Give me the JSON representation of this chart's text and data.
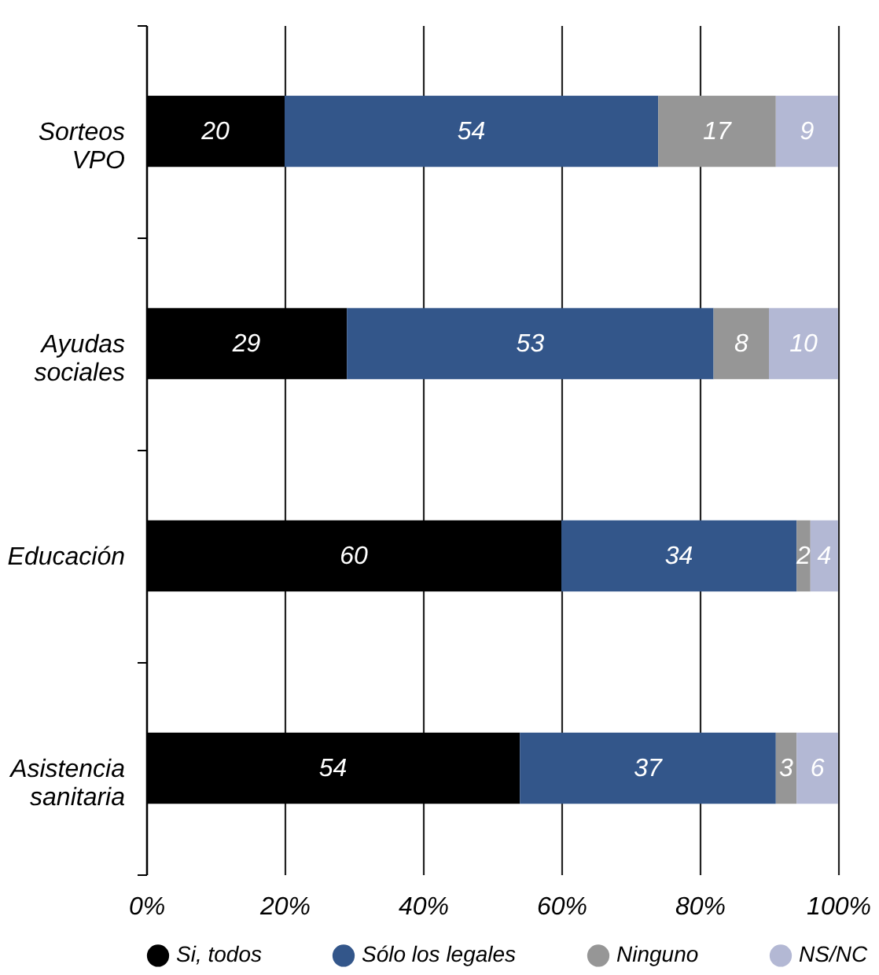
{
  "chart_data": {
    "type": "bar",
    "orientation": "horizontal",
    "stacked": true,
    "categories": [
      "Sorteos VPO",
      "Ayudas sociales",
      "Educación",
      "Asistencia sanitaria"
    ],
    "series": [
      {
        "name": "Si, todos",
        "color": "#000000",
        "values": [
          20,
          29,
          60,
          54
        ]
      },
      {
        "name": "Sólo los legales",
        "color": "#33568a",
        "values": [
          54,
          53,
          34,
          37
        ]
      },
      {
        "name": "Ninguno",
        "color": "#969696",
        "values": [
          17,
          8,
          2,
          3
        ]
      },
      {
        "name": "NS/NC",
        "color": "#b3b8d4",
        "values": [
          9,
          10,
          4,
          6
        ]
      }
    ],
    "xlim": [
      0,
      100
    ],
    "xticks": [
      {
        "value": 0,
        "label": "0%"
      },
      {
        "value": 20,
        "label": "20%"
      },
      {
        "value": 40,
        "label": "40%"
      },
      {
        "value": 60,
        "label": "60%"
      },
      {
        "value": 80,
        "label": "80%"
      },
      {
        "value": 100,
        "label": "100%"
      }
    ],
    "grid": "x",
    "legend": "bottom",
    "data_labels": true
  }
}
